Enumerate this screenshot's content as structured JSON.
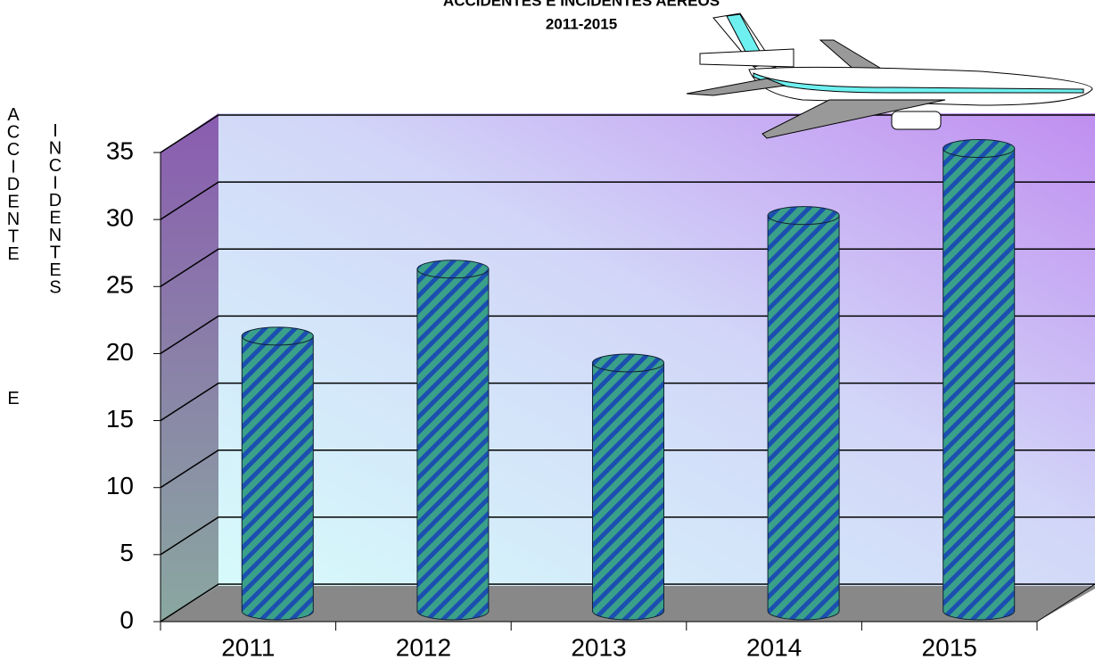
{
  "chart_data": {
    "type": "bar3d",
    "title": "ACCIDENTES  E INCIDENTES  AÉREOS",
    "subtitle": "2011-2015",
    "ylabel": [
      "ACCIDENTE",
      "E",
      "INCIDENTES"
    ],
    "categories": [
      "2011",
      "2012",
      "2013",
      "2014",
      "2015"
    ],
    "values": [
      20.5,
      25.5,
      18.5,
      29.5,
      34.5
    ],
    "ylim": [
      0,
      35
    ],
    "yticks": [
      0,
      5,
      10,
      15,
      20,
      25,
      30,
      35
    ],
    "grid": true,
    "color": "#2e8f8a"
  }
}
